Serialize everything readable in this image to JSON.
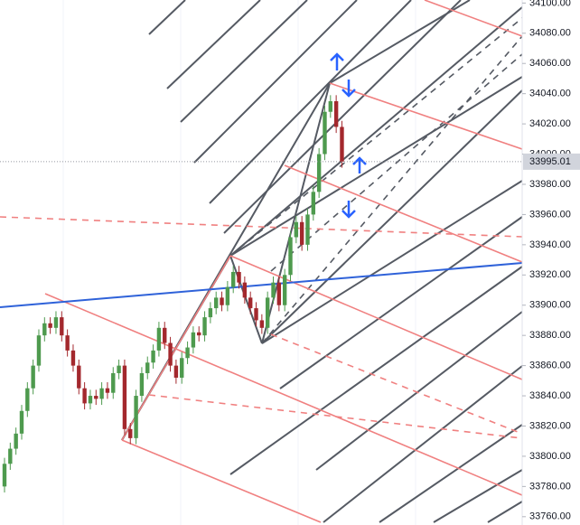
{
  "chart_data": {
    "type": "candlestick",
    "price_label": 33995.01,
    "ylim": [
      33754.5,
      34102
    ],
    "yticks": [
      {
        "value": 33760,
        "label": "33760.00"
      },
      {
        "value": 33780,
        "label": "33780.00"
      },
      {
        "value": 33800,
        "label": "33800.00"
      },
      {
        "value": 33820,
        "label": "33820.00"
      },
      {
        "value": 33840,
        "label": "33840.00"
      },
      {
        "value": 33860,
        "label": "33860.00"
      },
      {
        "value": 33880,
        "label": "33880.00"
      },
      {
        "value": 33900,
        "label": "33900.00"
      },
      {
        "value": 33920,
        "label": "33920.00"
      },
      {
        "value": 33940,
        "label": "33940.00"
      },
      {
        "value": 33960,
        "label": "33960.00"
      },
      {
        "value": 33980,
        "label": "33980.00"
      },
      {
        "value": 34000,
        "label": "34000.00"
      },
      {
        "value": 34020,
        "label": "34020.00"
      },
      {
        "value": 34040,
        "label": "34040.00"
      },
      {
        "value": 34060,
        "label": "34060.00"
      },
      {
        "value": 34080,
        "label": "34080.00"
      },
      {
        "value": 34100,
        "label": "34100.00"
      }
    ],
    "up_color": "#4e9a4e",
    "down_color": "#a3282d",
    "open": [
      33780,
      33795,
      33805,
      33815,
      33830,
      33845,
      33860,
      33880,
      33888,
      33885,
      33892,
      33880,
      33870,
      33860,
      33845,
      33835,
      33840,
      33838,
      33845,
      33842,
      33855,
      33860,
      33818,
      33812,
      33840,
      33855,
      33862,
      33870,
      33885,
      33875,
      33860,
      33852,
      33865,
      33872,
      33882,
      33880,
      33892,
      33898,
      33905,
      33900,
      33912,
      33922,
      33915,
      33905,
      33898,
      33890,
      33885,
      33905,
      33915,
      33900,
      33920,
      33945,
      33955,
      33940,
      33960,
      33975,
      34000,
      34028,
      34035,
      34018
    ],
    "high": [
      33799,
      33809,
      33819,
      33834,
      33849,
      33864,
      33884,
      33892,
      33892,
      33896,
      33896,
      33884,
      33874,
      33864,
      33849,
      33844,
      33844,
      33849,
      33849,
      33859,
      33864,
      33864,
      33822,
      33844,
      33859,
      33866,
      33874,
      33889,
      33889,
      33879,
      33864,
      33869,
      33876,
      33886,
      33886,
      33896,
      33902,
      33909,
      33909,
      33916,
      33926,
      33926,
      33919,
      33909,
      33902,
      33894,
      33909,
      33919,
      33919,
      33924,
      33949,
      33959,
      33959,
      33964,
      33979,
      34004,
      34032,
      34039,
      34039,
      34022
    ],
    "low": [
      33776,
      33791,
      33801,
      33811,
      33826,
      33841,
      33856,
      33876,
      33881,
      33881,
      33876,
      33866,
      33856,
      33841,
      33831,
      33831,
      33834,
      33834,
      33838,
      33838,
      33851,
      33814,
      33808,
      33808,
      33836,
      33851,
      33858,
      33866,
      33871,
      33856,
      33848,
      33848,
      33861,
      33868,
      33876,
      33876,
      33888,
      33894,
      33896,
      33896,
      33908,
      33911,
      33901,
      33894,
      33886,
      33881,
      33881,
      33901,
      33896,
      33896,
      33916,
      33941,
      33936,
      33936,
      33956,
      33971,
      33996,
      34024,
      34014,
      33991
    ],
    "close": [
      33795,
      33805,
      33815,
      33830,
      33845,
      33860,
      33880,
      33888,
      33885,
      33892,
      33880,
      33870,
      33860,
      33845,
      33835,
      33840,
      33838,
      33845,
      33842,
      33855,
      33860,
      33818,
      33812,
      33840,
      33855,
      33862,
      33870,
      33885,
      33875,
      33860,
      33852,
      33865,
      33872,
      33882,
      33880,
      33892,
      33898,
      33905,
      33900,
      33912,
      33922,
      33915,
      33905,
      33898,
      33890,
      33885,
      33905,
      33915,
      33900,
      33920,
      33945,
      33955,
      33940,
      33960,
      33975,
      34000,
      34028,
      34035,
      34018,
      33995
    ]
  }
}
